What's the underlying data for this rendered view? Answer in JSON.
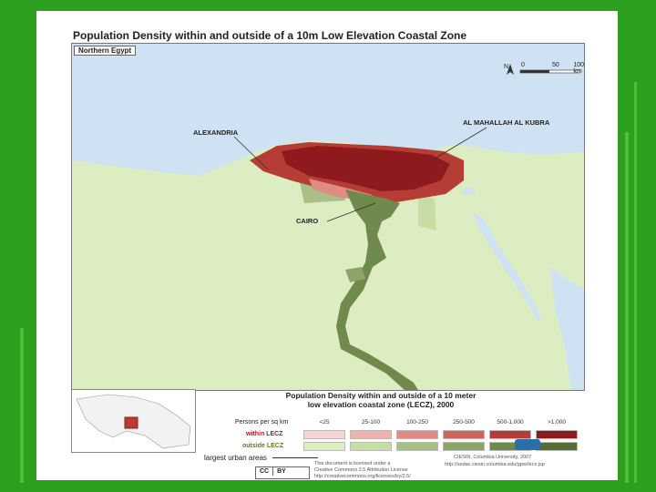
{
  "map_title": "Population Density within and outside of a 10m Low Elevation Coastal Zone",
  "region_label": "Northern Egypt",
  "places": {
    "alexandria": "ALEXANDRIA",
    "mahallah": "AL MAHALLAH AL KUBRA",
    "cairo": "CAIRO"
  },
  "scale": {
    "north": "N",
    "ticks": [
      "0",
      "50",
      "100 km"
    ]
  },
  "legend": {
    "title_line1": "Population Density within and outside of a 10 meter",
    "title_line2": "low elevation coastal zone (LECZ), 2000",
    "persons_label": "Persons per sq km",
    "within_label": "within LECZ",
    "outside_label": "outside LECZ",
    "urban_label": "largest urban areas",
    "categories": [
      "<25",
      "25-100",
      "100-250",
      "250-500",
      "500-1,000",
      ">1,000"
    ],
    "within_colors": [
      "#f7d5d5",
      "#eeb3ad",
      "#e08c82",
      "#cd6458",
      "#b63d35",
      "#8e1a1e"
    ],
    "outside_colors": [
      "#dcedc2",
      "#c8dca6",
      "#a9bf86",
      "#8da469",
      "#6f8a4c",
      "#566e35"
    ]
  },
  "credits": {
    "line1": "CIESIN, Columbia University, 2007",
    "line2": "http://sedac.ciesin.columbia.edu/gpw/lecz.jsp",
    "license1": "This document is licensed under a",
    "license2": "Creative Commons 2.5 Attribution License",
    "license3": "http://creativecommons.org/licenses/by/2.5/"
  },
  "cc_badge": {
    "cc": "CC",
    "by": "BY"
  },
  "colors": {
    "sea": "#cfe2f3",
    "land": "#dcedc2",
    "background": "#2ea01f"
  }
}
